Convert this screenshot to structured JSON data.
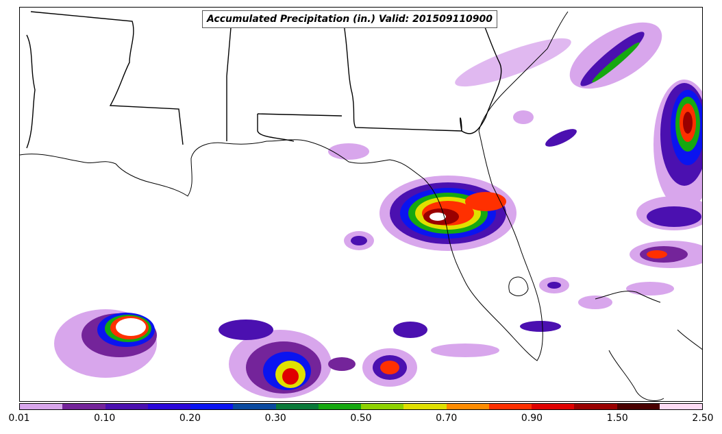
{
  "title": "Accumulated Precipitation (in.) Valid: 201509110900",
  "colorbar": {
    "colors": [
      "#d8a6ec",
      "#74249a",
      "#4b10b0",
      "#2a06d8",
      "#0a14f0",
      "#0a4aa0",
      "#0a7a3a",
      "#16a810",
      "#8ed200",
      "#e0e000",
      "#ff8c00",
      "#ff3000",
      "#e00000",
      "#9a0000",
      "#4a0000",
      "#fcdcf4"
    ],
    "ticks": [
      "0.01",
      "0.10",
      "0.20",
      "0.30",
      "0.50",
      "0.70",
      "0.90",
      "1.50",
      "2.50"
    ]
  }
}
